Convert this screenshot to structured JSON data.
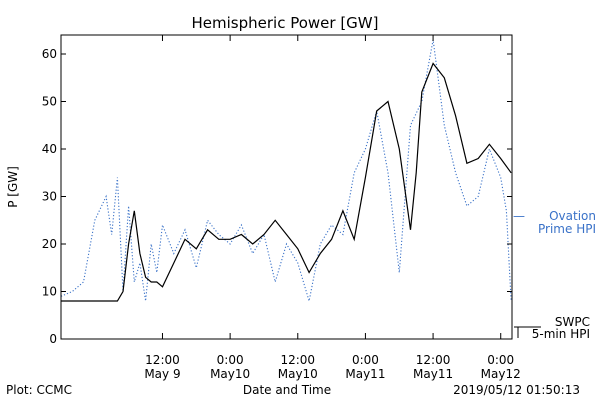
{
  "chart_data": {
    "type": "line",
    "title": "Hemispheric Power [GW]",
    "ylabel": "P [GW]",
    "xlabel": "Date and Time",
    "ylim": [
      0,
      64
    ],
    "xlim": [
      "2019-05-08T18:00",
      "2019-05-12T02:00"
    ],
    "y_ticks": [
      0,
      10,
      20,
      30,
      40,
      50,
      60
    ],
    "x_ticks": [
      {
        "time": "2019-05-09T12:00",
        "label1": "12:00",
        "label2": "May 9"
      },
      {
        "time": "2019-05-10T00:00",
        "label1": "0:00",
        "label2": "May10"
      },
      {
        "time": "2019-05-10T12:00",
        "label1": "12:00",
        "label2": "May10"
      },
      {
        "time": "2019-05-11T00:00",
        "label1": "0:00",
        "label2": "May11"
      },
      {
        "time": "2019-05-11T12:00",
        "label1": "12:00",
        "label2": "May11"
      },
      {
        "time": "2019-05-12T00:00",
        "label1": "0:00",
        "label2": "May12"
      }
    ],
    "series": [
      {
        "name": "SWPC 5-min HPI",
        "color": "#000000",
        "style": "solid",
        "x": [
          "2019-05-08T18:00",
          "2019-05-09T04:00",
          "2019-05-09T05:00",
          "2019-05-09T06:00",
          "2019-05-09T07:00",
          "2019-05-09T08:00",
          "2019-05-09T09:00",
          "2019-05-09T10:00",
          "2019-05-09T11:00",
          "2019-05-09T12:00",
          "2019-05-09T14:00",
          "2019-05-09T16:00",
          "2019-05-09T18:00",
          "2019-05-09T20:00",
          "2019-05-09T22:00",
          "2019-05-10T00:00",
          "2019-05-10T02:00",
          "2019-05-10T04:00",
          "2019-05-10T06:00",
          "2019-05-10T08:00",
          "2019-05-10T10:00",
          "2019-05-10T12:00",
          "2019-05-10T14:00",
          "2019-05-10T16:00",
          "2019-05-10T18:00",
          "2019-05-10T20:00",
          "2019-05-10T22:00",
          "2019-05-11T00:00",
          "2019-05-11T02:00",
          "2019-05-11T04:00",
          "2019-05-11T06:00",
          "2019-05-11T08:00",
          "2019-05-11T09:00",
          "2019-05-11T10:00",
          "2019-05-11T12:00",
          "2019-05-11T14:00",
          "2019-05-11T16:00",
          "2019-05-11T18:00",
          "2019-05-11T20:00",
          "2019-05-11T22:00",
          "2019-05-12T00:00",
          "2019-05-12T01:50"
        ],
        "values": [
          8,
          8,
          10,
          20,
          27,
          18,
          13,
          12,
          12,
          11,
          16,
          21,
          19,
          23,
          21,
          21,
          22,
          20,
          22,
          25,
          22,
          19,
          14,
          18,
          21,
          27,
          21,
          34,
          48,
          50,
          40,
          23,
          35,
          52,
          58,
          55,
          47,
          37,
          38,
          41,
          38,
          35
        ]
      },
      {
        "name": "Ovation Prime HPI",
        "color": "#3a72c8",
        "style": "dotted",
        "x": [
          "2019-05-08T18:00",
          "2019-05-08T20:00",
          "2019-05-08T22:00",
          "2019-05-09T00:00",
          "2019-05-09T02:00",
          "2019-05-09T03:00",
          "2019-05-09T04:00",
          "2019-05-09T05:00",
          "2019-05-09T06:00",
          "2019-05-09T07:00",
          "2019-05-09T08:00",
          "2019-05-09T09:00",
          "2019-05-09T10:00",
          "2019-05-09T11:00",
          "2019-05-09T12:00",
          "2019-05-09T14:00",
          "2019-05-09T16:00",
          "2019-05-09T18:00",
          "2019-05-09T20:00",
          "2019-05-09T22:00",
          "2019-05-10T00:00",
          "2019-05-10T02:00",
          "2019-05-10T04:00",
          "2019-05-10T06:00",
          "2019-05-10T08:00",
          "2019-05-10T10:00",
          "2019-05-10T12:00",
          "2019-05-10T14:00",
          "2019-05-10T16:00",
          "2019-05-10T18:00",
          "2019-05-10T20:00",
          "2019-05-10T22:00",
          "2019-05-11T00:00",
          "2019-05-11T02:00",
          "2019-05-11T04:00",
          "2019-05-11T06:00",
          "2019-05-11T08:00",
          "2019-05-11T10:00",
          "2019-05-11T12:00",
          "2019-05-11T14:00",
          "2019-05-11T16:00",
          "2019-05-11T18:00",
          "2019-05-11T20:00",
          "2019-05-11T22:00",
          "2019-05-12T00:00",
          "2019-05-12T01:00",
          "2019-05-12T01:50"
        ],
        "values": [
          9,
          10,
          12,
          25,
          30,
          22,
          34,
          10,
          28,
          12,
          16,
          8,
          20,
          14,
          24,
          18,
          23,
          15,
          25,
          22,
          20,
          24,
          18,
          22,
          12,
          20,
          16,
          8,
          20,
          24,
          22,
          35,
          40,
          48,
          35,
          14,
          45,
          50,
          63,
          45,
          35,
          28,
          30,
          40,
          34,
          27,
          8
        ]
      }
    ],
    "legend": {
      "placement": "right",
      "entries": [
        {
          "dash": "—",
          "line1": "Ovation",
          "line2": "Prime HPI",
          "color": "#3a72c8"
        },
        {
          "line1": "SWPC",
          "line2": "5-min HPI",
          "color": "#000000"
        }
      ]
    },
    "grid": false
  },
  "footer": {
    "left": "Plot: CCMC",
    "right": "2019/05/12 01:50:13"
  }
}
